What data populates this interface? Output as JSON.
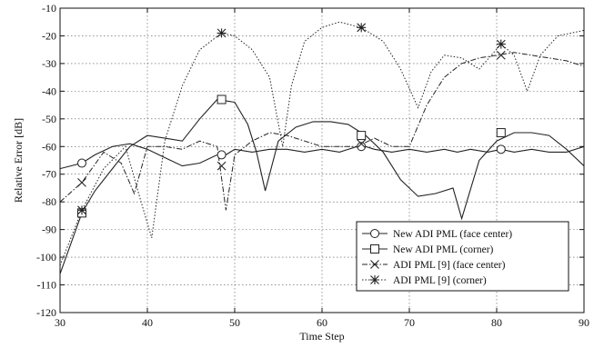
{
  "chart_data": {
    "type": "line",
    "title": "",
    "xlabel": "Time Step",
    "ylabel": "Relative Error [dB]",
    "xlim": [
      30,
      90
    ],
    "ylim": [
      -120,
      -10
    ],
    "xticks": [
      30,
      40,
      50,
      60,
      70,
      80,
      90
    ],
    "yticks": [
      -10,
      -20,
      -30,
      -40,
      -50,
      -60,
      -70,
      -80,
      -90,
      -100,
      -110,
      -120
    ],
    "grid": true,
    "legend_position": "bottom-right",
    "series": [
      {
        "name": "New ADI PML (face center)",
        "marker": "circle",
        "line_style": "solid",
        "color": "#222222",
        "x": [
          30,
          32.5,
          34,
          36,
          38,
          40,
          42,
          44,
          46,
          48,
          49,
          50,
          52,
          54,
          56,
          58,
          60,
          62,
          64,
          65,
          66,
          68,
          70,
          72,
          74,
          75.5,
          77,
          79,
          80.5,
          82,
          84,
          86,
          88,
          90
        ],
        "y": [
          -68,
          -66,
          -63,
          -60,
          -59,
          -61,
          -64,
          -67,
          -66,
          -63,
          -63,
          -61,
          -62,
          -61,
          -61,
          -62,
          -61,
          -62,
          -60,
          -60,
          -61,
          -62,
          -61,
          -62,
          -61,
          -62,
          -61,
          -62,
          -61,
          -62,
          -61,
          -62,
          -62,
          -60
        ],
        "marker_points": [
          {
            "x": 32.5,
            "y": -66
          },
          {
            "x": 48.5,
            "y": -63
          },
          {
            "x": 64.5,
            "y": -60
          },
          {
            "x": 80.5,
            "y": -61
          }
        ]
      },
      {
        "name": "New ADI PML (corner)",
        "marker": "square",
        "line_style": "solid",
        "color": "#222222",
        "x": [
          30,
          32.5,
          34,
          36,
          38,
          40,
          42,
          44,
          46,
          48,
          50,
          51.5,
          52.5,
          53.5,
          55,
          57,
          59,
          61,
          63,
          65,
          67,
          69,
          71,
          73,
          75,
          76,
          78,
          80,
          82,
          84,
          86,
          88,
          90
        ],
        "y": [
          -106,
          -84,
          -76,
          -68,
          -60,
          -56,
          -57,
          -58,
          -50,
          -43,
          -44,
          -52,
          -62,
          -76,
          -58,
          -53,
          -51,
          -51,
          -52,
          -56,
          -62,
          -72,
          -78,
          -77,
          -75,
          -86,
          -65,
          -58,
          -55,
          -55,
          -56,
          -61,
          -67
        ],
        "marker_points": [
          {
            "x": 32.5,
            "y": -84
          },
          {
            "x": 48.5,
            "y": -43
          },
          {
            "x": 64.5,
            "y": -56
          },
          {
            "x": 80.5,
            "y": -55
          }
        ]
      },
      {
        "name": "ADI PML [9] (face center)",
        "marker": "x",
        "line_style": "dashdot",
        "color": "#222222",
        "x": [
          30,
          32.5,
          35,
          37,
          38.5,
          40,
          42,
          44,
          46,
          48,
          49,
          50,
          52,
          54,
          56,
          58,
          60,
          62,
          64,
          66,
          68,
          70,
          72,
          74,
          76,
          78,
          80,
          82,
          84,
          86,
          88,
          90
        ],
        "y": [
          -80,
          -73,
          -62,
          -66,
          -77,
          -60,
          -60,
          -61,
          -58,
          -60,
          -83,
          -63,
          -58,
          -55,
          -56,
          -58,
          -60,
          -60,
          -60,
          -57,
          -60,
          -60,
          -45,
          -35,
          -30,
          -28,
          -27,
          -26,
          -27,
          -28,
          -29,
          -31
        ],
        "marker_points": [
          {
            "x": 32.5,
            "y": -73
          },
          {
            "x": 48.5,
            "y": -67
          },
          {
            "x": 64.5,
            "y": -59
          },
          {
            "x": 80.5,
            "y": -27
          }
        ]
      },
      {
        "name": "ADI PML [9] (corner)",
        "marker": "asterisk",
        "line_style": "dotted",
        "color": "#222222",
        "x": [
          30,
          32.5,
          35,
          37.5,
          39,
          40.5,
          42,
          44,
          46,
          48.5,
          50,
          52,
          54,
          55.5,
          56.5,
          58,
          60,
          62,
          64.5,
          67,
          69,
          71,
          72.5,
          74,
          76,
          78,
          80.5,
          82,
          83.5,
          85,
          87,
          90
        ],
        "y": [
          -103,
          -83,
          -68,
          -60,
          -77,
          -93,
          -58,
          -38,
          -25,
          -19,
          -20,
          -25,
          -35,
          -60,
          -38,
          -22,
          -17,
          -15,
          -17,
          -22,
          -32,
          -46,
          -33,
          -27,
          -28,
          -32,
          -23,
          -27,
          -40,
          -27,
          -20,
          -18
        ],
        "marker_points": [
          {
            "x": 32.5,
            "y": -83
          },
          {
            "x": 48.5,
            "y": -19
          },
          {
            "x": 64.5,
            "y": -17
          },
          {
            "x": 80.5,
            "y": -23
          }
        ]
      }
    ]
  }
}
